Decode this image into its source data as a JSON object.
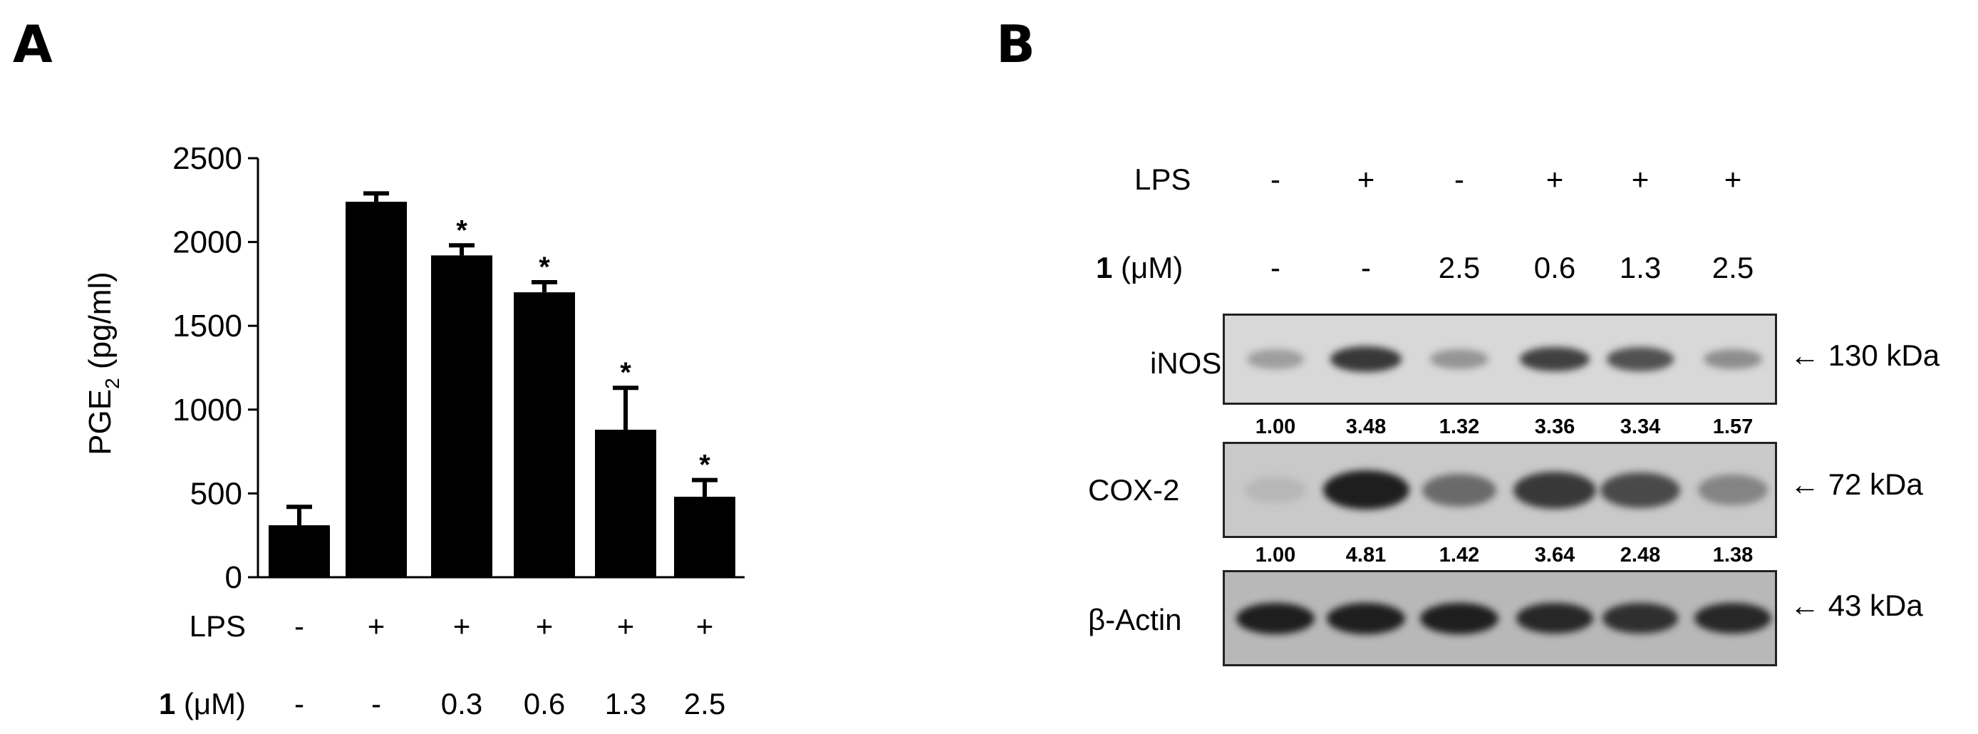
{
  "panels": {
    "a": "A",
    "b": "B"
  },
  "chart_data": {
    "type": "bar",
    "ylabel_main": "PGE",
    "ylabel_sub": "2",
    "ylabel_tail": " (pg/ml)",
    "ylim": [
      0,
      2500
    ],
    "yticks": [
      "0",
      "500",
      "1000",
      "1500",
      "2000",
      "2500"
    ],
    "ytick_values": [
      0,
      500,
      1000,
      1500,
      2000,
      2500
    ],
    "values": [
      310,
      2240,
      1920,
      1700,
      880,
      480
    ],
    "errors": [
      110,
      50,
      60,
      60,
      250,
      100
    ],
    "significance": [
      "",
      "",
      "*",
      "*",
      "*",
      "*"
    ],
    "row_lps_label": "LPS",
    "row_lps": [
      "-",
      "+",
      "+",
      "+",
      "+",
      "+"
    ],
    "row_dose_label_bold": "1",
    "row_dose_label_rest": " (μM)",
    "row_dose": [
      "-",
      "-",
      "0.3",
      "0.6",
      "1.3",
      "2.5"
    ],
    "bar_color": "#000000"
  },
  "blot": {
    "lps_label": "LPS",
    "lps": [
      "-",
      "+",
      "-",
      "+",
      "+",
      "+"
    ],
    "dose_label_bold": "1",
    "dose_label_rest": " (μM)",
    "dose": [
      "-",
      "-",
      "2.5",
      "0.6",
      "1.3",
      "2.5"
    ],
    "inos_label": "iNOS",
    "inos_marker": "← 130 kDa",
    "inos_values": [
      "1.00",
      "3.48",
      "1.32",
      "3.36",
      "3.34",
      "1.57"
    ],
    "inos_intensity": [
      0.25,
      0.85,
      0.3,
      0.8,
      0.7,
      0.35
    ],
    "cox2_label": "COX-2",
    "cox2_marker": "← 72 kDa",
    "cox2_values": [
      "1.00",
      "4.81",
      "1.42",
      "3.64",
      "2.48",
      "1.38"
    ],
    "cox2_intensity": [
      0.1,
      1.0,
      0.55,
      0.85,
      0.75,
      0.4
    ],
    "actin_label": "β-Actin",
    "actin_marker": "← 43 kDa",
    "actin_intensity": [
      1.0,
      1.0,
      1.0,
      0.95,
      0.9,
      0.95
    ]
  }
}
